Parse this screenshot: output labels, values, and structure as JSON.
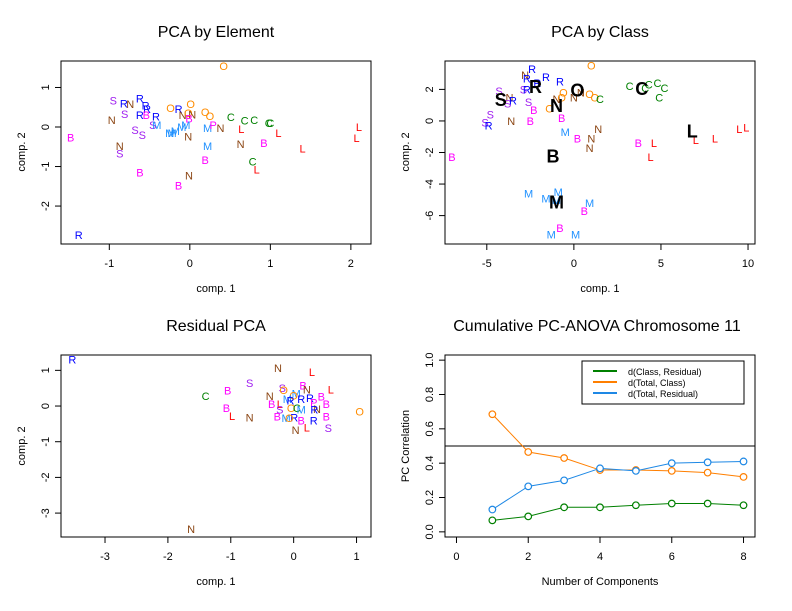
{
  "colors": {
    "B": "#ff00ff",
    "C": "#008000",
    "L": "#ff0000",
    "M": "#1e90ff",
    "N": "#8b4513",
    "O": "#ff8c00",
    "R": "#0000ff",
    "S": "#a020f0",
    "green": "#008000",
    "orange": "#ff7f00",
    "blue": "#1e88e5"
  },
  "chart_data": [
    {
      "type": "scatter",
      "title": "PCA by Element",
      "xlabel": "comp. 1",
      "ylabel": "comp. 2",
      "xlim": [
        -1.6,
        2.25
      ],
      "ylim": [
        -2.96,
        1.67
      ],
      "xticks": [
        -1,
        0,
        1,
        2
      ],
      "yticks": [
        1,
        0,
        -1,
        -2
      ],
      "points": [
        {
          "label": "O",
          "x": 0.42,
          "y": 1.54
        },
        {
          "label": "S",
          "x": -0.95,
          "y": 0.67
        },
        {
          "label": "R",
          "x": -0.82,
          "y": 0.6
        },
        {
          "label": "N",
          "x": -0.74,
          "y": 0.58
        },
        {
          "label": "R",
          "x": -0.62,
          "y": 0.72
        },
        {
          "label": "R",
          "x": -0.55,
          "y": 0.55
        },
        {
          "label": "R",
          "x": -0.53,
          "y": 0.45
        },
        {
          "label": "S",
          "x": -0.81,
          "y": 0.33
        },
        {
          "label": "R",
          "x": -0.62,
          "y": 0.3
        },
        {
          "label": "B",
          "x": -0.54,
          "y": 0.3
        },
        {
          "label": "R",
          "x": -0.42,
          "y": 0.26
        },
        {
          "label": "S",
          "x": -0.46,
          "y": 0.05
        },
        {
          "label": "M",
          "x": -0.41,
          "y": 0.05
        },
        {
          "label": "N",
          "x": -0.97,
          "y": 0.18
        },
        {
          "label": "O",
          "x": -0.24,
          "y": 0.48
        },
        {
          "label": "R",
          "x": -0.14,
          "y": 0.45
        },
        {
          "label": "O",
          "x": 0.01,
          "y": 0.58
        },
        {
          "label": "N",
          "x": -0.09,
          "y": 0.3
        },
        {
          "label": "O",
          "x": -0.02,
          "y": 0.35
        },
        {
          "label": "N",
          "x": 0.03,
          "y": 0.32
        },
        {
          "label": "B",
          "x": -0.01,
          "y": 0.22
        },
        {
          "label": "O",
          "x": 0.19,
          "y": 0.38
        },
        {
          "label": "O",
          "x": 0.25,
          "y": 0.28
        },
        {
          "label": "C",
          "x": 0.51,
          "y": 0.25
        },
        {
          "label": "C",
          "x": 0.68,
          "y": 0.17
        },
        {
          "label": "C",
          "x": 0.8,
          "y": 0.18
        },
        {
          "label": "C",
          "x": 0.98,
          "y": 0.1
        },
        {
          "label": "C",
          "x": 1.0,
          "y": 0.1
        },
        {
          "label": "S",
          "x": -0.68,
          "y": -0.07
        },
        {
          "label": "S",
          "x": -0.59,
          "y": -0.2
        },
        {
          "label": "M",
          "x": -0.25,
          "y": -0.15
        },
        {
          "label": "M",
          "x": -0.22,
          "y": -0.15
        },
        {
          "label": "M",
          "x": -0.18,
          "y": -0.1
        },
        {
          "label": "M",
          "x": -0.1,
          "y": -0.0
        },
        {
          "label": "M",
          "x": -0.05,
          "y": 0.05
        },
        {
          "label": "N",
          "x": -0.02,
          "y": -0.24
        },
        {
          "label": "M",
          "x": 0.22,
          "y": -0.03
        },
        {
          "label": "P",
          "x": 0.29,
          "y": 0.05
        },
        {
          "label": "N",
          "x": 0.38,
          "y": -0.02
        },
        {
          "label": "L",
          "x": 0.64,
          "y": -0.05
        },
        {
          "label": "L",
          "x": 1.1,
          "y": -0.15
        },
        {
          "label": "L",
          "x": 2.1,
          "y": 0.0
        },
        {
          "label": "L",
          "x": 2.07,
          "y": -0.28
        },
        {
          "label": "L",
          "x": 1.4,
          "y": -0.55
        },
        {
          "label": "B",
          "x": -1.48,
          "y": -0.26
        },
        {
          "label": "N",
          "x": 0.63,
          "y": -0.43
        },
        {
          "label": "B",
          "x": 0.92,
          "y": -0.4
        },
        {
          "label": "M",
          "x": 0.22,
          "y": -0.48
        },
        {
          "label": "N",
          "x": -0.87,
          "y": -0.48
        },
        {
          "label": "S",
          "x": -0.87,
          "y": -0.67
        },
        {
          "label": "B",
          "x": 0.19,
          "y": -0.83
        },
        {
          "label": "C",
          "x": 0.78,
          "y": -0.87
        },
        {
          "label": "L",
          "x": 0.83,
          "y": -1.07
        },
        {
          "label": "B",
          "x": -0.62,
          "y": -1.15
        },
        {
          "label": "N",
          "x": -0.01,
          "y": -1.23
        },
        {
          "label": "B",
          "x": -0.14,
          "y": -1.48
        },
        {
          "label": "R",
          "x": -1.38,
          "y": -2.73
        }
      ]
    },
    {
      "type": "scatter",
      "title": "PCA by Class",
      "xlabel": "comp. 1",
      "ylabel": "comp. 2",
      "xlim": [
        -7.4,
        10.4
      ],
      "ylim": [
        -7.8,
        3.8
      ],
      "xticks": [
        -5,
        0,
        5,
        10
      ],
      "yticks": [
        2,
        0,
        -2,
        -4,
        -6
      ],
      "centroids": [
        {
          "label": "S",
          "x": -4.2,
          "y": 1.4
        },
        {
          "label": "R",
          "x": -2.2,
          "y": 2.2
        },
        {
          "label": "O",
          "x": 0.2,
          "y": 2.0
        },
        {
          "label": "N",
          "x": -1.0,
          "y": 1.0
        },
        {
          "label": "C",
          "x": 3.9,
          "y": 2.1
        },
        {
          "label": "L",
          "x": 6.8,
          "y": -0.6
        },
        {
          "label": "B",
          "x": -1.2,
          "y": -2.2
        },
        {
          "label": "M",
          "x": -1.0,
          "y": -5.1
        }
      ],
      "points": [
        {
          "label": "O",
          "x": 1.0,
          "y": 3.5
        },
        {
          "label": "R",
          "x": -2.4,
          "y": 3.3
        },
        {
          "label": "N",
          "x": -2.8,
          "y": 2.9
        },
        {
          "label": "R",
          "x": -2.7,
          "y": 2.7
        },
        {
          "label": "R",
          "x": -1.6,
          "y": 2.8
        },
        {
          "label": "R",
          "x": -2.1,
          "y": 2.4
        },
        {
          "label": "R",
          "x": -0.8,
          "y": 2.5
        },
        {
          "label": "S",
          "x": -4.3,
          "y": 1.9
        },
        {
          "label": "S",
          "x": -2.9,
          "y": 2.0
        },
        {
          "label": "R",
          "x": -2.7,
          "y": 2.0
        },
        {
          "label": "N",
          "x": -3.7,
          "y": 1.5
        },
        {
          "label": "S",
          "x": -3.8,
          "y": 1.1
        },
        {
          "label": "R",
          "x": -3.5,
          "y": 1.3
        },
        {
          "label": "S",
          "x": -2.6,
          "y": 1.2
        },
        {
          "label": "B",
          "x": -2.3,
          "y": 0.7
        },
        {
          "label": "O",
          "x": -0.6,
          "y": 1.8
        },
        {
          "label": "N",
          "x": -1.0,
          "y": 1.4
        },
        {
          "label": "O",
          "x": -0.7,
          "y": 1.5
        },
        {
          "label": "N",
          "x": 0.0,
          "y": 1.5
        },
        {
          "label": "N",
          "x": 0.4,
          "y": 1.8
        },
        {
          "label": "O",
          "x": 0.9,
          "y": 1.7
        },
        {
          "label": "O",
          "x": 1.2,
          "y": 1.5
        },
        {
          "label": "C",
          "x": 1.5,
          "y": 1.4
        },
        {
          "label": "O",
          "x": -1.4,
          "y": 0.8
        },
        {
          "label": "B",
          "x": -0.7,
          "y": 0.2
        },
        {
          "label": "S",
          "x": -4.8,
          "y": 0.4
        },
        {
          "label": "S",
          "x": -5.1,
          "y": -0.1
        },
        {
          "label": "R",
          "x": -4.9,
          "y": -0.3
        },
        {
          "label": "N",
          "x": -3.6,
          "y": 0.0
        },
        {
          "label": "B",
          "x": -2.5,
          "y": 0.0
        },
        {
          "label": "C",
          "x": 3.2,
          "y": 2.2
        },
        {
          "label": "C",
          "x": 4.1,
          "y": 2.1
        },
        {
          "label": "C",
          "x": 4.3,
          "y": 2.3
        },
        {
          "label": "C",
          "x": 4.8,
          "y": 2.4
        },
        {
          "label": "C",
          "x": 5.2,
          "y": 2.1
        },
        {
          "label": "C",
          "x": 4.9,
          "y": 1.5
        },
        {
          "label": "M",
          "x": -0.5,
          "y": -0.7
        },
        {
          "label": "B",
          "x": 0.2,
          "y": -1.1
        },
        {
          "label": "N",
          "x": 1.4,
          "y": -0.5
        },
        {
          "label": "N",
          "x": 1.0,
          "y": -1.1
        },
        {
          "label": "N",
          "x": 0.9,
          "y": -1.7
        },
        {
          "label": "B",
          "x": 3.7,
          "y": -1.4
        },
        {
          "label": "L",
          "x": 4.6,
          "y": -1.4
        },
        {
          "label": "L",
          "x": 4.4,
          "y": -2.3
        },
        {
          "label": "L",
          "x": 7.0,
          "y": -1.2
        },
        {
          "label": "L",
          "x": 8.1,
          "y": -1.1
        },
        {
          "label": "L",
          "x": 9.5,
          "y": -0.5
        },
        {
          "label": "L",
          "x": 9.9,
          "y": -0.4
        },
        {
          "label": "B",
          "x": -7.0,
          "y": -2.3
        },
        {
          "label": "M",
          "x": -2.6,
          "y": -4.6
        },
        {
          "label": "M",
          "x": -0.9,
          "y": -4.5
        },
        {
          "label": "M",
          "x": -1.6,
          "y": -4.9
        },
        {
          "label": "M",
          "x": -1.0,
          "y": -5.0
        },
        {
          "label": "M",
          "x": 0.9,
          "y": -5.2
        },
        {
          "label": "B",
          "x": 0.6,
          "y": -5.7
        },
        {
          "label": "B",
          "x": -0.8,
          "y": -6.8
        },
        {
          "label": "M",
          "x": -1.3,
          "y": -7.2
        },
        {
          "label": "M",
          "x": 0.1,
          "y": -7.2
        }
      ]
    },
    {
      "type": "scatter",
      "title": "Residual PCA",
      "xlabel": "comp. 1",
      "ylabel": "comp. 2",
      "xlim": [
        -3.7,
        1.23
      ],
      "ylim": [
        -3.67,
        1.43
      ],
      "xticks": [
        -3,
        -2,
        -1,
        0,
        1
      ],
      "yticks": [
        1,
        0,
        -1,
        -2,
        -3
      ],
      "points": [
        {
          "label": "R",
          "x": -3.52,
          "y": 1.3
        },
        {
          "label": "N",
          "x": -0.25,
          "y": 1.07
        },
        {
          "label": "L",
          "x": 0.29,
          "y": 0.95
        },
        {
          "label": "S",
          "x": -0.7,
          "y": 0.65
        },
        {
          "label": "B",
          "x": -1.05,
          "y": 0.43
        },
        {
          "label": "C",
          "x": -1.4,
          "y": 0.28
        },
        {
          "label": "S",
          "x": -0.18,
          "y": 0.5
        },
        {
          "label": "O",
          "x": -0.16,
          "y": 0.45
        },
        {
          "label": "B",
          "x": 0.15,
          "y": 0.58
        },
        {
          "label": "N",
          "x": 0.21,
          "y": 0.47
        },
        {
          "label": "L",
          "x": 0.59,
          "y": 0.47
        },
        {
          "label": "N",
          "x": -0.38,
          "y": 0.28
        },
        {
          "label": "B",
          "x": 0.44,
          "y": 0.27
        },
        {
          "label": "M",
          "x": 0.04,
          "y": 0.35
        },
        {
          "label": "O",
          "x": 0.0,
          "y": 0.3
        },
        {
          "label": "M",
          "x": -0.1,
          "y": 0.2
        },
        {
          "label": "R",
          "x": -0.05,
          "y": 0.15
        },
        {
          "label": "R",
          "x": 0.12,
          "y": 0.2
        },
        {
          "label": "R",
          "x": 0.26,
          "y": 0.22
        },
        {
          "label": "B",
          "x": 0.52,
          "y": 0.05
        },
        {
          "label": "P",
          "x": 0.32,
          "y": 0.1
        },
        {
          "label": "B",
          "x": -0.35,
          "y": 0.05
        },
        {
          "label": "L",
          "x": -0.22,
          "y": 0.05
        },
        {
          "label": "S",
          "x": -0.22,
          "y": -0.1
        },
        {
          "label": "O",
          "x": -0.04,
          "y": -0.05
        },
        {
          "label": "C",
          "x": 0.05,
          "y": -0.05
        },
        {
          "label": "M",
          "x": 0.12,
          "y": -0.1
        },
        {
          "label": "N",
          "x": 0.37,
          "y": -0.08
        },
        {
          "label": "R",
          "x": 0.33,
          "y": -0.1
        },
        {
          "label": "B",
          "x": -1.07,
          "y": -0.05
        },
        {
          "label": "L",
          "x": -0.98,
          "y": -0.28
        },
        {
          "label": "N",
          "x": -0.7,
          "y": -0.32
        },
        {
          "label": "B",
          "x": -0.26,
          "y": -0.3
        },
        {
          "label": "M",
          "x": -0.12,
          "y": -0.33
        },
        {
          "label": "R",
          "x": 0.01,
          "y": -0.32
        },
        {
          "label": "O",
          "x": -0.07,
          "y": -0.33
        },
        {
          "label": "B",
          "x": 0.12,
          "y": -0.4
        },
        {
          "label": "R",
          "x": 0.32,
          "y": -0.4
        },
        {
          "label": "B",
          "x": 0.52,
          "y": -0.3
        },
        {
          "label": "L",
          "x": 0.21,
          "y": -0.6
        },
        {
          "label": "N",
          "x": 0.03,
          "y": -0.67
        },
        {
          "label": "S",
          "x": 0.55,
          "y": -0.62
        },
        {
          "label": "O",
          "x": 1.05,
          "y": -0.15
        },
        {
          "label": "N",
          "x": -1.63,
          "y": -3.44
        }
      ]
    },
    {
      "type": "line",
      "title": "Cumulative PC-ANOVA Chromosome 11",
      "xlabel": "Number of Components",
      "ylabel": "PC Correlation",
      "xlim": [
        -0.32,
        8.32
      ],
      "ylim": [
        -0.03,
        1.03
      ],
      "xticks": [
        0,
        2,
        4,
        6,
        8
      ],
      "yticks": [
        0.0,
        0.2,
        0.4,
        0.6,
        0.8,
        1.0
      ],
      "hline": 0.5,
      "legend_position": "top-right",
      "x": [
        1,
        2,
        3,
        4,
        5,
        6,
        7,
        8
      ],
      "series": [
        {
          "name": "d(Class, Residual)",
          "color": "green",
          "values": [
            0.067,
            0.09,
            0.143,
            0.143,
            0.155,
            0.165,
            0.165,
            0.155
          ]
        },
        {
          "name": "d(Total, Class)",
          "color": "orange",
          "values": [
            0.685,
            0.465,
            0.43,
            0.36,
            0.36,
            0.355,
            0.345,
            0.32
          ]
        },
        {
          "name": "d(Total, Residual)",
          "color": "blue",
          "values": [
            0.13,
            0.265,
            0.3,
            0.37,
            0.355,
            0.4,
            0.405,
            0.41
          ]
        }
      ]
    }
  ]
}
